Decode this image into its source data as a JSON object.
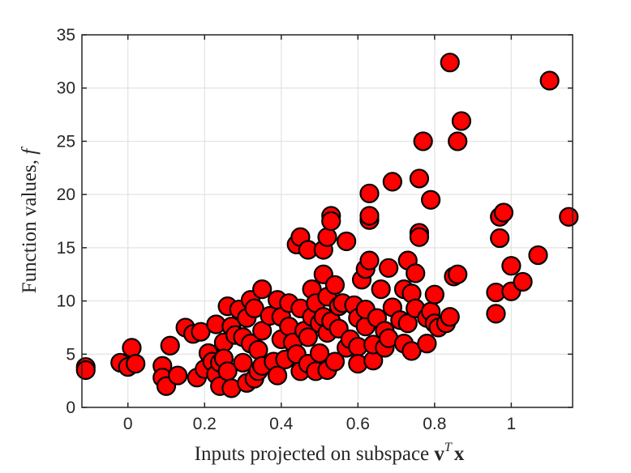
{
  "chart_data": {
    "type": "scatter",
    "title": "",
    "xlabel": "Inputs projected on subspace ",
    "xlabel_math": "v",
    "xlabel_sup": "T",
    "xlabel_math2": "x",
    "ylabel": "Function values, ",
    "ylabel_math": "f",
    "xlim": [
      -0.12,
      1.16
    ],
    "ylim": [
      0,
      35
    ],
    "xticks": [
      0,
      0.2,
      0.4,
      0.6,
      0.8,
      1
    ],
    "xtick_labels": [
      "0",
      "0.2",
      "0.4",
      "0.6",
      "0.8",
      "1"
    ],
    "yticks": [
      0,
      5,
      10,
      15,
      20,
      25,
      30,
      35
    ],
    "ytick_labels": [
      "0",
      "5",
      "10",
      "15",
      "20",
      "25",
      "30",
      "35"
    ],
    "grid": true,
    "marker_color": "#ff0000",
    "marker_edge_color": "#000000",
    "series": [
      {
        "points": [
          [
            -0.11,
            3.8
          ],
          [
            -0.11,
            3.5
          ],
          [
            -0.02,
            4.2
          ],
          [
            0.0,
            3.8
          ],
          [
            0.01,
            5.6
          ],
          [
            0.02,
            4.1
          ],
          [
            0.09,
            3.9
          ],
          [
            0.09,
            2.8
          ],
          [
            0.1,
            2.0
          ],
          [
            0.11,
            5.8
          ],
          [
            0.13,
            3.0
          ],
          [
            0.15,
            7.5
          ],
          [
            0.17,
            6.9
          ],
          [
            0.18,
            2.8
          ],
          [
            0.19,
            7.1
          ],
          [
            0.2,
            3.6
          ],
          [
            0.21,
            5.1
          ],
          [
            0.22,
            4.3
          ],
          [
            0.23,
            7.8
          ],
          [
            0.23,
            3.1
          ],
          [
            0.24,
            4.2
          ],
          [
            0.24,
            2.0
          ],
          [
            0.25,
            6.1
          ],
          [
            0.25,
            4.6
          ],
          [
            0.26,
            3.4
          ],
          [
            0.26,
            9.5
          ],
          [
            0.27,
            7.6
          ],
          [
            0.27,
            1.8
          ],
          [
            0.28,
            6.8
          ],
          [
            0.29,
            9.2
          ],
          [
            0.3,
            6.6
          ],
          [
            0.3,
            4.2
          ],
          [
            0.31,
            8.4
          ],
          [
            0.31,
            2.3
          ],
          [
            0.32,
            10.1
          ],
          [
            0.32,
            6.0
          ],
          [
            0.33,
            2.7
          ],
          [
            0.33,
            9.3
          ],
          [
            0.34,
            5.4
          ],
          [
            0.34,
            3.4
          ],
          [
            0.35,
            7.2
          ],
          [
            0.35,
            11.1
          ],
          [
            0.35,
            3.9
          ],
          [
            0.37,
            8.6
          ],
          [
            0.38,
            4.3
          ],
          [
            0.39,
            10.1
          ],
          [
            0.39,
            3.0
          ],
          [
            0.4,
            6.4
          ],
          [
            0.4,
            8.5
          ],
          [
            0.41,
            4.5
          ],
          [
            0.42,
            9.8
          ],
          [
            0.42,
            7.6
          ],
          [
            0.43,
            6.1
          ],
          [
            0.44,
            15.3
          ],
          [
            0.44,
            5.0
          ],
          [
            0.45,
            9.3
          ],
          [
            0.45,
            3.4
          ],
          [
            0.45,
            16.0
          ],
          [
            0.46,
            7.2
          ],
          [
            0.47,
            14.8
          ],
          [
            0.47,
            6.6
          ],
          [
            0.47,
            4.1
          ],
          [
            0.48,
            11.1
          ],
          [
            0.48,
            8.5
          ],
          [
            0.49,
            3.4
          ],
          [
            0.49,
            9.8
          ],
          [
            0.5,
            5.1
          ],
          [
            0.5,
            7.9
          ],
          [
            0.51,
            8.5
          ],
          [
            0.51,
            14.8
          ],
          [
            0.51,
            12.5
          ],
          [
            0.52,
            3.5
          ],
          [
            0.52,
            7.0
          ],
          [
            0.52,
            16.0
          ],
          [
            0.52,
            10.4
          ],
          [
            0.53,
            18.0
          ],
          [
            0.53,
            8.1
          ],
          [
            0.53,
            17.5
          ],
          [
            0.54,
            4.3
          ],
          [
            0.54,
            11.5
          ],
          [
            0.55,
            9.5
          ],
          [
            0.55,
            7.4
          ],
          [
            0.56,
            9.8
          ],
          [
            0.57,
            5.6
          ],
          [
            0.57,
            15.6
          ],
          [
            0.58,
            6.4
          ],
          [
            0.59,
            9.6
          ],
          [
            0.6,
            5.7
          ],
          [
            0.6,
            8.4
          ],
          [
            0.6,
            4.1
          ],
          [
            0.61,
            12.0
          ],
          [
            0.62,
            7.6
          ],
          [
            0.62,
            9.2
          ],
          [
            0.62,
            13.0
          ],
          [
            0.63,
            17.6
          ],
          [
            0.63,
            18.0
          ],
          [
            0.63,
            20.1
          ],
          [
            0.63,
            13.8
          ],
          [
            0.64,
            4.4
          ],
          [
            0.64,
            5.9
          ],
          [
            0.65,
            8.4
          ],
          [
            0.66,
            11.1
          ],
          [
            0.67,
            5.6
          ],
          [
            0.67,
            7.2
          ],
          [
            0.68,
            6.5
          ],
          [
            0.68,
            13.1
          ],
          [
            0.69,
            21.2
          ],
          [
            0.69,
            9.4
          ],
          [
            0.71,
            8.2
          ],
          [
            0.72,
            11.1
          ],
          [
            0.72,
            6.0
          ],
          [
            0.73,
            13.8
          ],
          [
            0.73,
            7.9
          ],
          [
            0.74,
            5.3
          ],
          [
            0.74,
            10.7
          ],
          [
            0.75,
            9.3
          ],
          [
            0.75,
            12.6
          ],
          [
            0.76,
            16.4
          ],
          [
            0.76,
            21.5
          ],
          [
            0.76,
            16.0
          ],
          [
            0.77,
            25.0
          ],
          [
            0.78,
            6.0
          ],
          [
            0.78,
            8.4
          ],
          [
            0.79,
            19.5
          ],
          [
            0.79,
            9.0
          ],
          [
            0.8,
            7.9
          ],
          [
            0.8,
            10.6
          ],
          [
            0.81,
            7.5
          ],
          [
            0.83,
            7.9
          ],
          [
            0.84,
            8.5
          ],
          [
            0.84,
            32.4
          ],
          [
            0.85,
            12.3
          ],
          [
            0.86,
            25.0
          ],
          [
            0.86,
            12.5
          ],
          [
            0.87,
            26.9
          ],
          [
            0.96,
            10.8
          ],
          [
            0.96,
            8.8
          ],
          [
            0.97,
            15.9
          ],
          [
            0.97,
            17.9
          ],
          [
            0.98,
            18.3
          ],
          [
            1.0,
            10.9
          ],
          [
            1.0,
            13.3
          ],
          [
            1.03,
            11.8
          ],
          [
            1.07,
            14.3
          ],
          [
            1.1,
            30.7
          ],
          [
            1.15,
            17.9
          ]
        ]
      }
    ]
  }
}
